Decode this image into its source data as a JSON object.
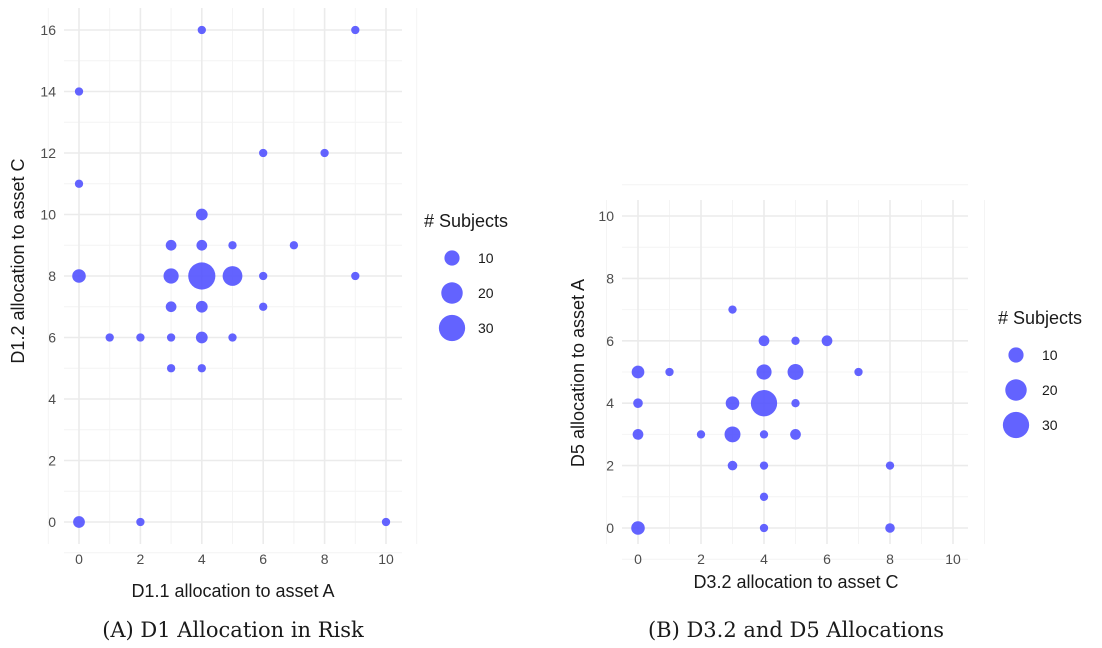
{
  "colors": {
    "point": "#4d4dff",
    "grid_major": "#ebebeb",
    "grid_minor": "#f4f4f4"
  },
  "chart_data": [
    {
      "type": "scatter",
      "title": "",
      "caption": "(A) D1 Allocation in Risk",
      "xlabel": "D1.1 allocation to asset A",
      "ylabel": "D1.2 allocation to asset C",
      "xlim": [
        0,
        10
      ],
      "ylim": [
        0,
        16
      ],
      "xticks": [
        0,
        2,
        4,
        6,
        8,
        10
      ],
      "yticks": [
        0,
        2,
        4,
        6,
        8,
        10,
        12,
        14,
        16
      ],
      "grid": true,
      "legend_position": "right",
      "size_legend": {
        "title": "# Subjects",
        "entries": [
          10,
          20,
          30
        ]
      },
      "points": [
        {
          "x": 4,
          "y": 16,
          "n": 3
        },
        {
          "x": 9,
          "y": 16,
          "n": 3
        },
        {
          "x": 0,
          "y": 14,
          "n": 3
        },
        {
          "x": 6,
          "y": 12,
          "n": 3
        },
        {
          "x": 8,
          "y": 12,
          "n": 3
        },
        {
          "x": 0,
          "y": 11,
          "n": 3
        },
        {
          "x": 4,
          "y": 10,
          "n": 6
        },
        {
          "x": 3,
          "y": 9,
          "n": 5
        },
        {
          "x": 4,
          "y": 9,
          "n": 5
        },
        {
          "x": 5,
          "y": 9,
          "n": 3
        },
        {
          "x": 7,
          "y": 9,
          "n": 3
        },
        {
          "x": 0,
          "y": 8,
          "n": 8
        },
        {
          "x": 3,
          "y": 8,
          "n": 10
        },
        {
          "x": 4,
          "y": 8,
          "n": 32
        },
        {
          "x": 5,
          "y": 8,
          "n": 17
        },
        {
          "x": 6,
          "y": 8,
          "n": 3
        },
        {
          "x": 9,
          "y": 8,
          "n": 3
        },
        {
          "x": 3,
          "y": 7,
          "n": 5
        },
        {
          "x": 4,
          "y": 7,
          "n": 6
        },
        {
          "x": 6,
          "y": 7,
          "n": 3
        },
        {
          "x": 1,
          "y": 6,
          "n": 3
        },
        {
          "x": 2,
          "y": 6,
          "n": 3
        },
        {
          "x": 3,
          "y": 6,
          "n": 3
        },
        {
          "x": 4,
          "y": 6,
          "n": 6
        },
        {
          "x": 5,
          "y": 6,
          "n": 3
        },
        {
          "x": 3,
          "y": 5,
          "n": 3
        },
        {
          "x": 4,
          "y": 5,
          "n": 3
        },
        {
          "x": 0,
          "y": 0,
          "n": 6
        },
        {
          "x": 2,
          "y": 0,
          "n": 3
        },
        {
          "x": 10,
          "y": 0,
          "n": 3
        }
      ]
    },
    {
      "type": "scatter",
      "title": "",
      "caption": "(B) D3.2 and D5 Allocations",
      "xlabel": "D3.2 allocation to asset C",
      "ylabel": "D5 allocation to asset A",
      "xlim": [
        0,
        10
      ],
      "ylim": [
        0,
        10
      ],
      "xticks": [
        0,
        2,
        4,
        6,
        8,
        10
      ],
      "yticks": [
        0,
        2,
        4,
        6,
        8,
        10
      ],
      "grid": true,
      "legend_position": "right",
      "size_legend": {
        "title": "# Subjects",
        "entries": [
          10,
          20,
          30
        ]
      },
      "points": [
        {
          "x": 3,
          "y": 7,
          "n": 3
        },
        {
          "x": 4,
          "y": 6,
          "n": 5
        },
        {
          "x": 5,
          "y": 6,
          "n": 3
        },
        {
          "x": 6,
          "y": 6,
          "n": 5
        },
        {
          "x": 0,
          "y": 5,
          "n": 7
        },
        {
          "x": 1,
          "y": 5,
          "n": 3
        },
        {
          "x": 4,
          "y": 5,
          "n": 10
        },
        {
          "x": 5,
          "y": 5,
          "n": 11
        },
        {
          "x": 7,
          "y": 5,
          "n": 3
        },
        {
          "x": 0,
          "y": 4,
          "n": 4
        },
        {
          "x": 3,
          "y": 4,
          "n": 8
        },
        {
          "x": 4,
          "y": 4,
          "n": 30
        },
        {
          "x": 5,
          "y": 4,
          "n": 3
        },
        {
          "x": 0,
          "y": 3,
          "n": 5
        },
        {
          "x": 2,
          "y": 3,
          "n": 3
        },
        {
          "x": 3,
          "y": 3,
          "n": 11
        },
        {
          "x": 4,
          "y": 3,
          "n": 3
        },
        {
          "x": 5,
          "y": 3,
          "n": 5
        },
        {
          "x": 3,
          "y": 2,
          "n": 4
        },
        {
          "x": 4,
          "y": 2,
          "n": 3
        },
        {
          "x": 8,
          "y": 2,
          "n": 3
        },
        {
          "x": 4,
          "y": 1,
          "n": 3
        },
        {
          "x": 0,
          "y": 0,
          "n": 8
        },
        {
          "x": 4,
          "y": 0,
          "n": 3
        },
        {
          "x": 8,
          "y": 0,
          "n": 4
        }
      ]
    }
  ]
}
